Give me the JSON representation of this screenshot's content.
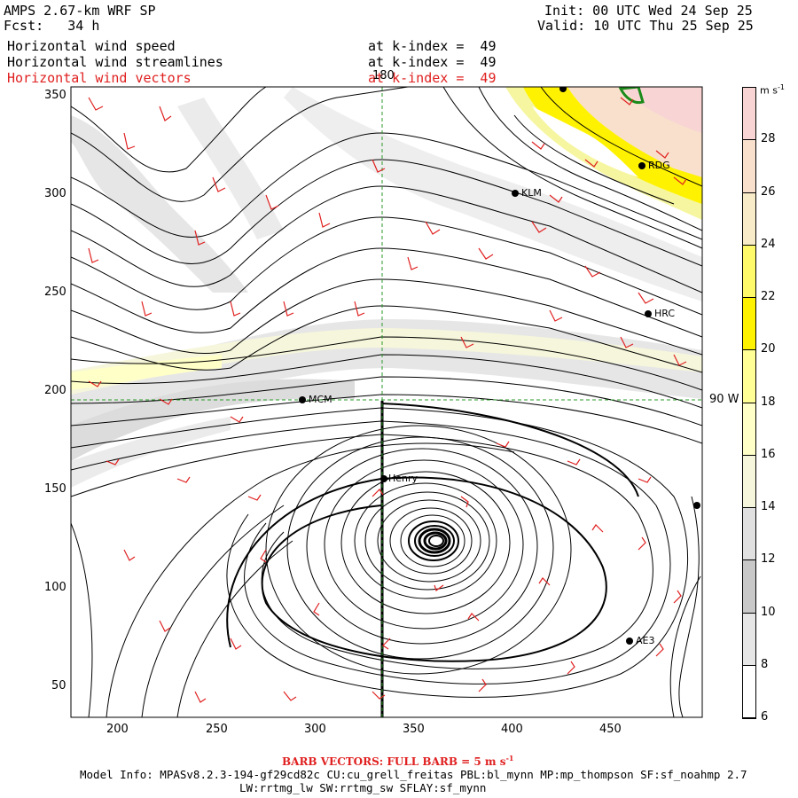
{
  "header": {
    "title": "AMPS 2.67-km WRF SP",
    "fcst": "Fcst:   34 h",
    "init": "Init: 00 UTC Wed 24 Sep 25",
    "valid": "Valid: 10 UTC Thu 25 Sep 25",
    "fields": [
      {
        "name": "Horizontal wind speed",
        "level": "at k-index =  49"
      },
      {
        "name": "Horizontal wind streamlines",
        "level": "at k-index =  49"
      },
      {
        "name": "Horizontal wind vectors",
        "level": "at k-index =  49"
      }
    ]
  },
  "axes": {
    "x_ticks": [
      "200",
      "250",
      "300",
      "350",
      "400",
      "450"
    ],
    "y_ticks": [
      "350",
      "300",
      "250",
      "200",
      "150",
      "100",
      "50"
    ]
  },
  "grid_labels": {
    "lon": "180",
    "lat": "90 W"
  },
  "stations": [
    {
      "name": "RDG"
    },
    {
      "name": "KLM"
    },
    {
      "name": "HRC"
    },
    {
      "name": "MCM"
    },
    {
      "name": "Henry"
    },
    {
      "name": "AE3"
    }
  ],
  "colorbar": {
    "unit": "m s",
    "unit_exp": "-1",
    "labels": [
      "28",
      "26",
      "24",
      "22",
      "20",
      "18",
      "16",
      "14",
      "12",
      "10",
      "8",
      "6"
    ],
    "colors": [
      "#f8d4d4",
      "#f8e0cc",
      "#f8ecc8",
      "#fffa6a",
      "#fff200",
      "#ffff96",
      "#ffffc8",
      "#f6f6dc",
      "#e0e0e0",
      "#c8c8c8",
      "#e6e6e6",
      "#ffffff"
    ]
  },
  "footer": {
    "barb": "BARB VECTORS:  FULL BARB = 5 m s",
    "barb_exp": "-1",
    "model_info": "Model Info: MPASv8.2.3-194-gf29cd82c CU:cu_grell_freitas PBL:bl_mynn MP:mp_thompson SF:sf_noahmp 2.7",
    "model_info2": "LW:rrtmg_lw SW:rrtmg_sw SFLAY:sf_mynn"
  }
}
